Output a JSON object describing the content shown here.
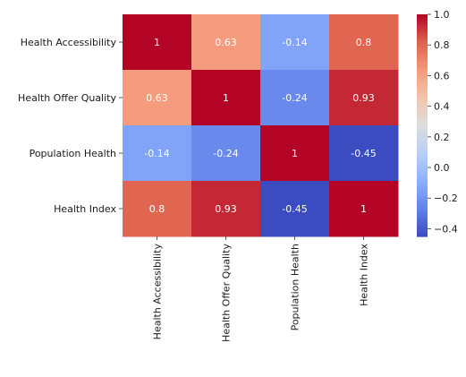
{
  "chart_data": {
    "type": "heatmap",
    "labels": [
      "Health Accessibility",
      "Health Offer Quality",
      "Population Health",
      "Health Index"
    ],
    "values": [
      [
        1,
        0.63,
        -0.14,
        0.8
      ],
      [
        0.63,
        1,
        -0.24,
        0.93
      ],
      [
        -0.14,
        -0.24,
        1,
        -0.45
      ],
      [
        0.8,
        0.93,
        -0.45,
        1
      ]
    ],
    "cell_labels": [
      [
        "1",
        "0.63",
        "-0.14",
        "0.8"
      ],
      [
        "0.63",
        "1",
        "-0.24",
        "0.93"
      ],
      [
        "-0.14",
        "-0.24",
        "1",
        "-0.45"
      ],
      [
        "0.8",
        "0.93",
        "-0.45",
        "1"
      ]
    ],
    "colormap": "coolwarm",
    "colorbar": {
      "range": [
        -0.45,
        1
      ],
      "ticks": [
        1.0,
        0.8,
        0.6,
        0.4,
        0.2,
        0.0,
        -0.2,
        -0.4
      ],
      "tick_labels": [
        "1.0",
        "0.8",
        "0.6",
        "0.4",
        "0.2",
        "0.0",
        "−0.2",
        "−0.4"
      ]
    },
    "title": "",
    "xlabel": "",
    "ylabel": ""
  }
}
